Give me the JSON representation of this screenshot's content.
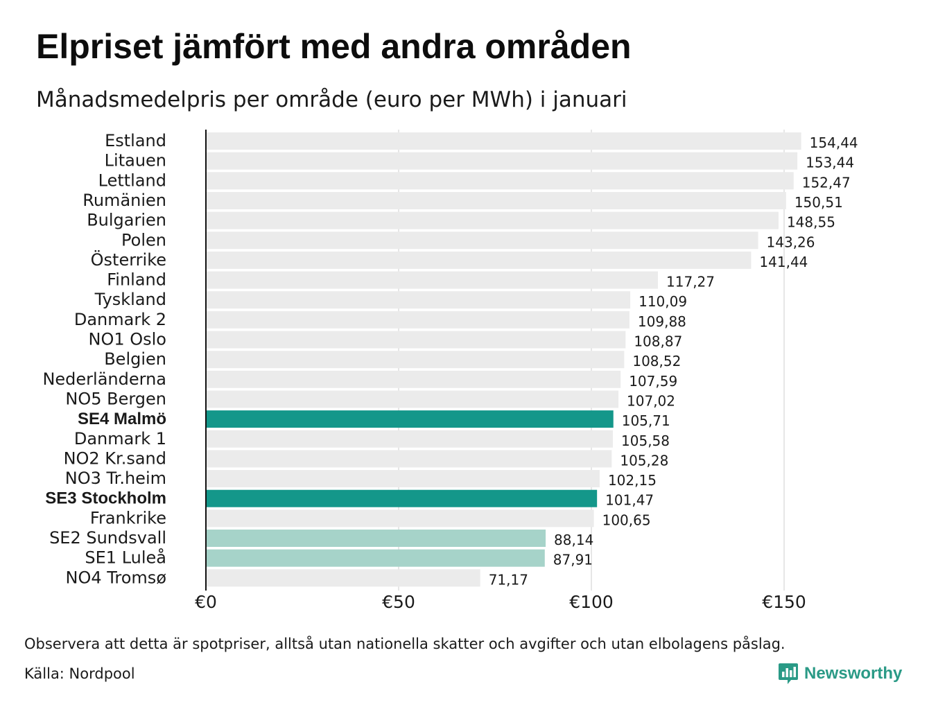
{
  "title": "Elpriset jämfört med andra områden",
  "subtitle": "Månadsmedelpris per område (euro per MWh) i januari",
  "note": "Observera att detta är spotpriser, alltså utan nationella skatter och avgifter och utan elbolagens påslag.",
  "source": "Källa: Nordpool",
  "logo": {
    "name": "Newsworthy",
    "icon": "bar-chart-speech-bubble-icon"
  },
  "colors": {
    "default_bar": "#ebebeb",
    "highlight_bar": "#14978a",
    "light_highlight_bar": "#a6d3c9",
    "gridline": "#cccccc",
    "axis": "#111111",
    "brand": "#2a9a86"
  },
  "chart_data": {
    "type": "bar",
    "orientation": "horizontal",
    "title": "Elpriset jämfört med andra områden",
    "subtitle": "Månadsmedelpris per område (euro per MWh) i januari",
    "xlabel": "",
    "ylabel": "",
    "xlim": [
      0,
      165
    ],
    "xticks": [
      0,
      50,
      100,
      150
    ],
    "xtick_labels": [
      "€0",
      "€50",
      "€100",
      "€150"
    ],
    "grid": true,
    "categories": [
      "Estland",
      "Litauen",
      "Lettland",
      "Rumänien",
      "Bulgarien",
      "Polen",
      "Österrike",
      "Finland",
      "Tyskland",
      "Danmark  2",
      "NO1 Oslo",
      "Belgien",
      "Nederländerna",
      "NO5 Bergen",
      "SE4 Malmö",
      "Danmark  1",
      "NO2 Kr.sand",
      "NO3 Tr.heim",
      "SE3 Stockholm",
      "Frankrike",
      "SE2  Sundsvall",
      "SE1  Luleå",
      "NO4 Tromsø"
    ],
    "values": [
      154.44,
      153.44,
      152.47,
      150.51,
      148.55,
      143.26,
      141.44,
      117.27,
      110.09,
      109.88,
      108.87,
      108.52,
      107.59,
      107.02,
      105.71,
      105.58,
      105.28,
      102.15,
      101.47,
      100.65,
      88.14,
      87.91,
      71.17
    ],
    "value_labels": [
      "154,44",
      "153,44",
      "152,47",
      "150,51",
      "148,55",
      "143,26",
      "141,44",
      "117,27",
      "110,09",
      "109,88",
      "108,87",
      "108,52",
      "107,59",
      "107,02",
      "105,71",
      "105,58",
      "105,28",
      "102,15",
      "101,47",
      "100,65",
      "88,14",
      "87,91",
      "71,17"
    ],
    "highlight": [
      "none",
      "none",
      "none",
      "none",
      "none",
      "none",
      "none",
      "none",
      "none",
      "none",
      "none",
      "none",
      "none",
      "none",
      "strong",
      "none",
      "none",
      "none",
      "strong",
      "none",
      "light",
      "light",
      "none"
    ]
  }
}
